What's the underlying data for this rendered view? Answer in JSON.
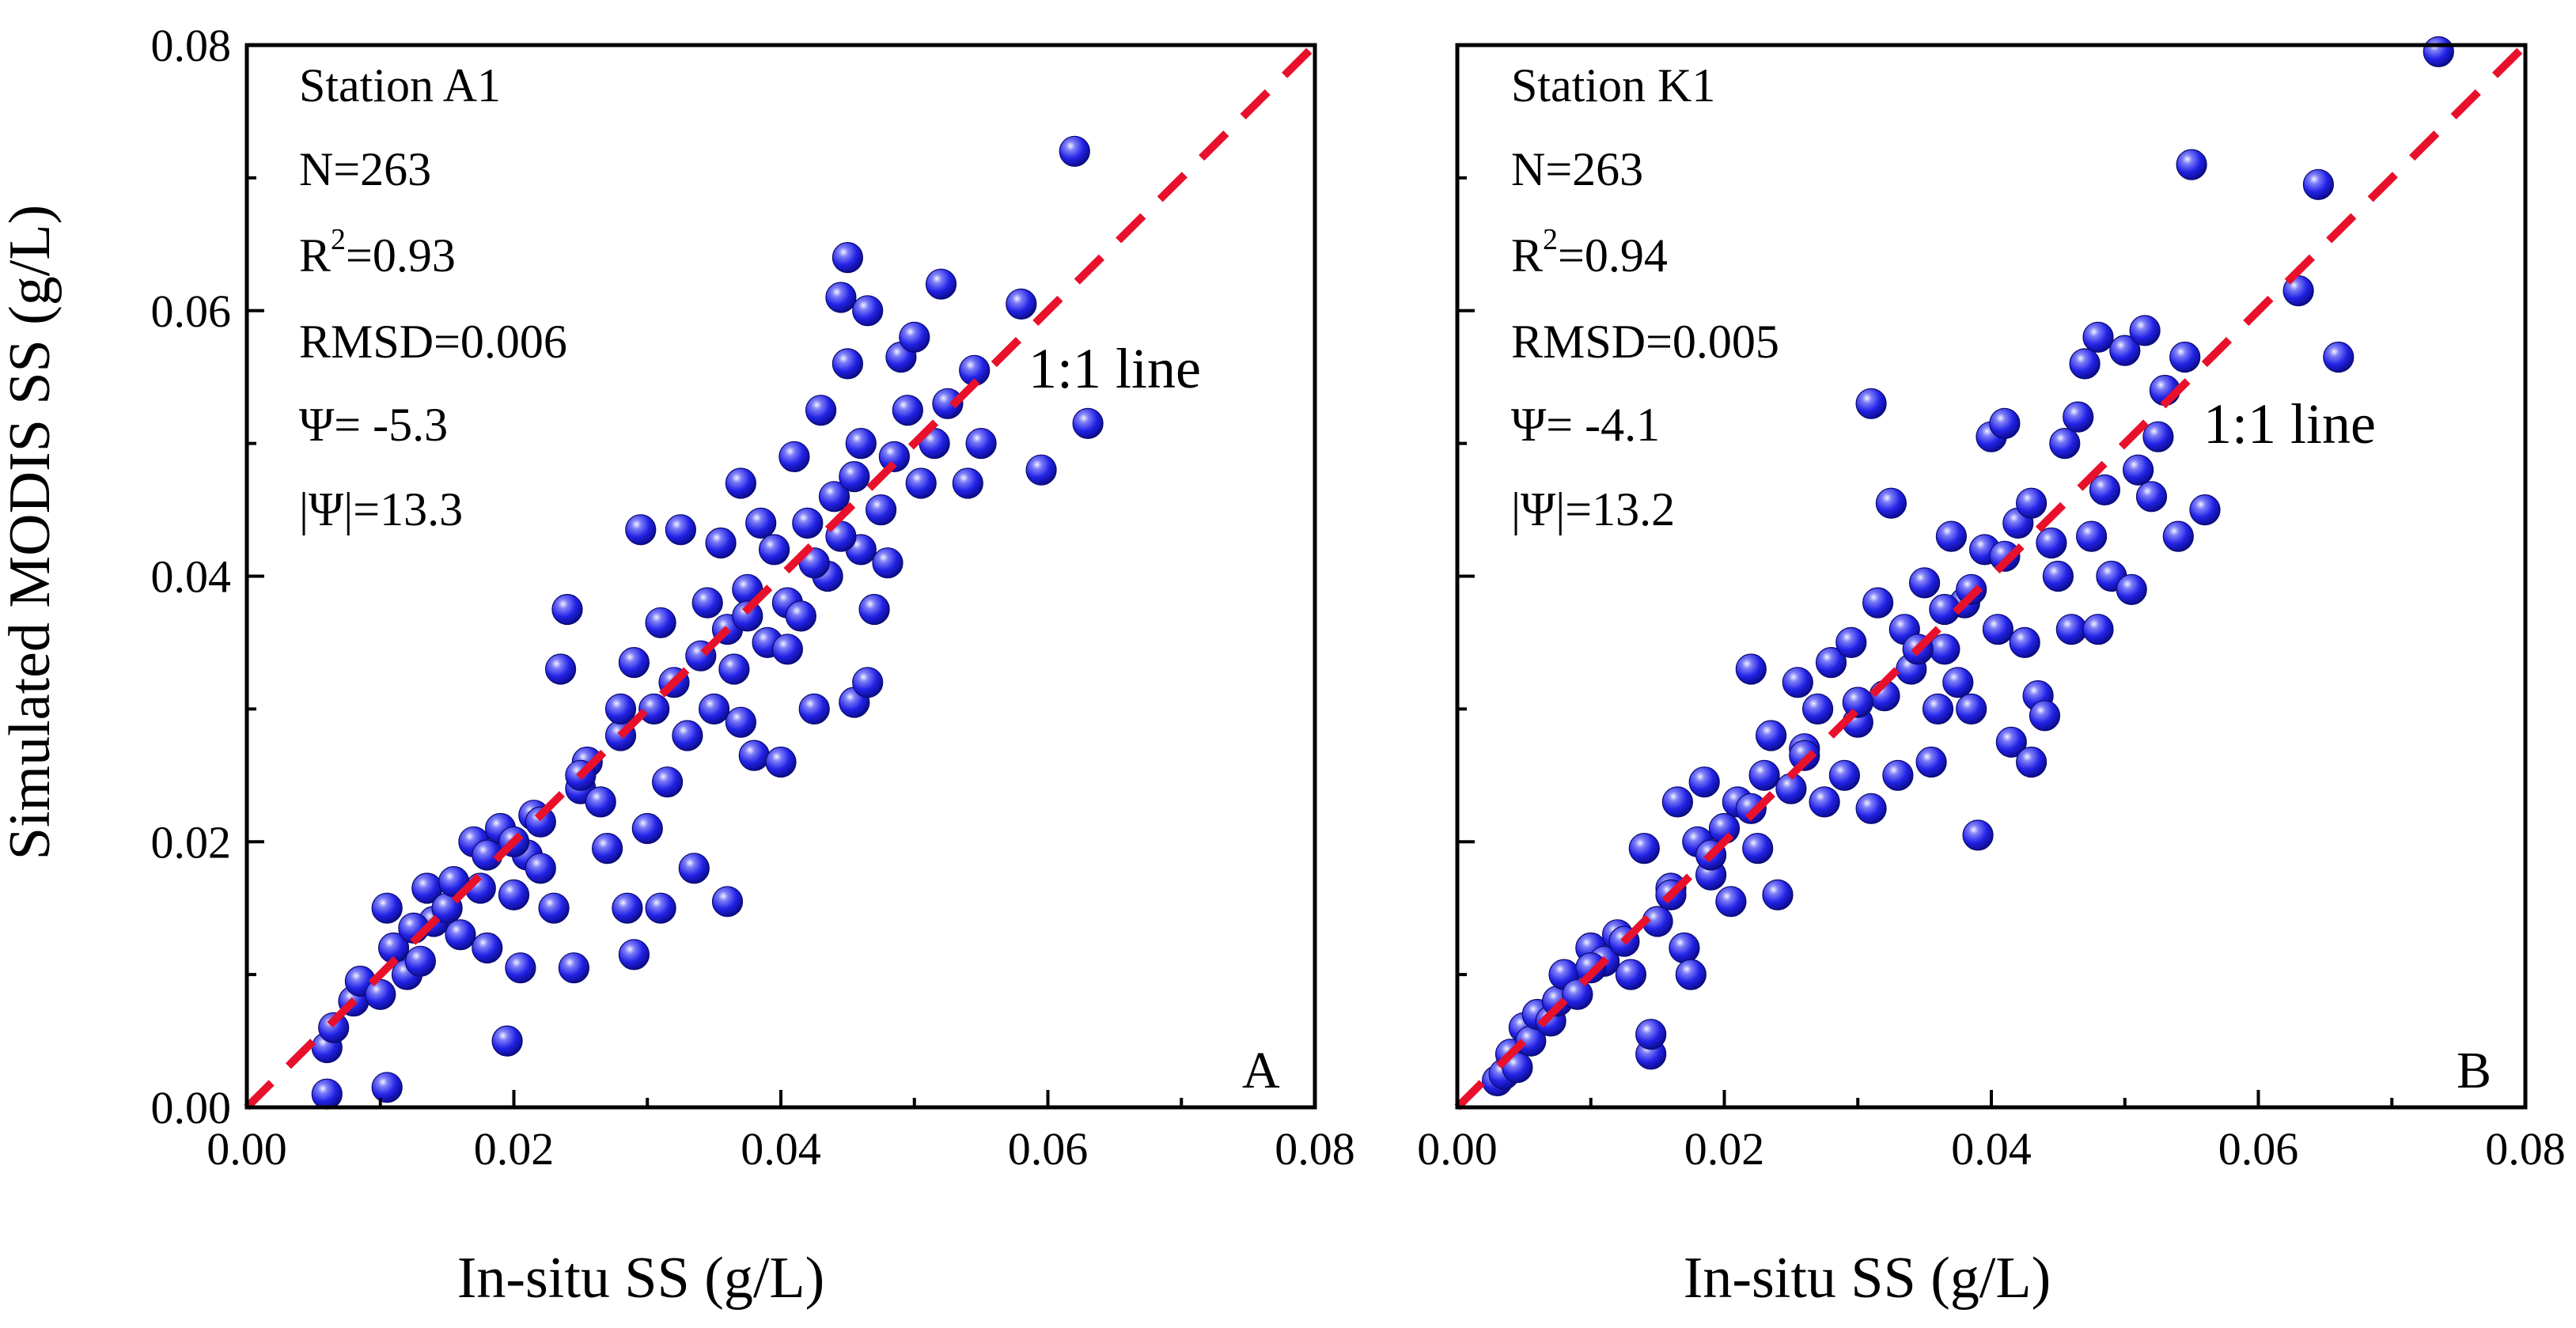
{
  "figure": {
    "y_axis_title": "Simulated MODIS SS (g/L)",
    "x_axis_title": "In-situ SS (g/L)",
    "ref_line_label": "1:1 line"
  },
  "colors": {
    "point": "#1f1fe0",
    "ref_line": "#e8102a",
    "axis": "#000000"
  },
  "chart_data": [
    {
      "type": "scatter",
      "panel": "A",
      "xlim": [
        0,
        0.08
      ],
      "ylim": [
        0,
        0.08
      ],
      "x_ticks": [
        "0.00",
        "0.02",
        "0.04",
        "0.06",
        "0.08"
      ],
      "y_ticks": [
        "0.00",
        "0.02",
        "0.04",
        "0.06",
        "0.08"
      ],
      "xlabel": "In-situ SS (g/L)",
      "ylabel": "Simulated MODIS SS (g/L)",
      "stats": [
        "Station A1",
        "N=263",
        "R",
        "=0.93",
        "RMSD=0.006",
        "Ψ= -5.3",
        "|Ψ|=13.3"
      ],
      "reference_line": "1:1 line",
      "points": [
        [
          0.006,
          0.001
        ],
        [
          0.0105,
          0.0015
        ],
        [
          0.006,
          0.0045
        ],
        [
          0.0065,
          0.006
        ],
        [
          0.008,
          0.008
        ],
        [
          0.0085,
          0.0095
        ],
        [
          0.01,
          0.0085
        ],
        [
          0.011,
          0.012
        ],
        [
          0.0105,
          0.015
        ],
        [
          0.012,
          0.01
        ],
        [
          0.013,
          0.011
        ],
        [
          0.0135,
          0.0165
        ],
        [
          0.014,
          0.014
        ],
        [
          0.015,
          0.015
        ],
        [
          0.016,
          0.013
        ],
        [
          0.017,
          0.02
        ],
        [
          0.018,
          0.012
        ],
        [
          0.018,
          0.019
        ],
        [
          0.019,
          0.021
        ],
        [
          0.0195,
          0.005
        ],
        [
          0.02,
          0.016
        ],
        [
          0.0205,
          0.0105
        ],
        [
          0.021,
          0.019
        ],
        [
          0.0215,
          0.022
        ],
        [
          0.022,
          0.018
        ],
        [
          0.023,
          0.015
        ],
        [
          0.0235,
          0.033
        ],
        [
          0.024,
          0.0375
        ],
        [
          0.0245,
          0.0105
        ],
        [
          0.025,
          0.024
        ],
        [
          0.0255,
          0.026
        ],
        [
          0.0265,
          0.023
        ],
        [
          0.027,
          0.0195
        ],
        [
          0.028,
          0.028
        ],
        [
          0.0285,
          0.015
        ],
        [
          0.029,
          0.0115
        ],
        [
          0.029,
          0.0335
        ],
        [
          0.0295,
          0.0435
        ],
        [
          0.03,
          0.021
        ],
        [
          0.0305,
          0.03
        ],
        [
          0.031,
          0.015
        ],
        [
          0.031,
          0.0365
        ],
        [
          0.0315,
          0.0245
        ],
        [
          0.032,
          0.032
        ],
        [
          0.0325,
          0.0435
        ],
        [
          0.033,
          0.028
        ],
        [
          0.0335,
          0.018
        ],
        [
          0.034,
          0.034
        ],
        [
          0.0345,
          0.038
        ],
        [
          0.035,
          0.03
        ],
        [
          0.0355,
          0.0425
        ],
        [
          0.036,
          0.0155
        ],
        [
          0.036,
          0.036
        ],
        [
          0.0365,
          0.033
        ],
        [
          0.037,
          0.047
        ],
        [
          0.037,
          0.029
        ],
        [
          0.0375,
          0.039
        ],
        [
          0.038,
          0.0265
        ],
        [
          0.0385,
          0.044
        ],
        [
          0.039,
          0.035
        ],
        [
          0.0395,
          0.042
        ],
        [
          0.04,
          0.026
        ],
        [
          0.0405,
          0.038
        ],
        [
          0.041,
          0.049
        ],
        [
          0.0415,
          0.037
        ],
        [
          0.042,
          0.044
        ],
        [
          0.0425,
          0.03
        ],
        [
          0.043,
          0.0525
        ],
        [
          0.0435,
          0.04
        ],
        [
          0.044,
          0.046
        ],
        [
          0.0445,
          0.061
        ],
        [
          0.045,
          0.064
        ],
        [
          0.045,
          0.056
        ],
        [
          0.0455,
          0.0305
        ],
        [
          0.046,
          0.042
        ],
        [
          0.046,
          0.05
        ],
        [
          0.0465,
          0.032
        ],
        [
          0.0465,
          0.06
        ],
        [
          0.047,
          0.0375
        ],
        [
          0.0475,
          0.045
        ],
        [
          0.048,
          0.041
        ],
        [
          0.0485,
          0.049
        ],
        [
          0.049,
          0.0565
        ],
        [
          0.0495,
          0.0525
        ],
        [
          0.05,
          0.058
        ],
        [
          0.0505,
          0.047
        ],
        [
          0.0515,
          0.05
        ],
        [
          0.052,
          0.062
        ],
        [
          0.0525,
          0.053
        ],
        [
          0.054,
          0.047
        ],
        [
          0.0545,
          0.0555
        ],
        [
          0.055,
          0.05
        ],
        [
          0.058,
          0.0605
        ],
        [
          0.0595,
          0.048
        ],
        [
          0.062,
          0.072
        ],
        [
          0.063,
          0.0515
        ],
        [
          0.0375,
          0.037
        ],
        [
          0.0405,
          0.0345
        ],
        [
          0.0425,
          0.041
        ],
        [
          0.0445,
          0.043
        ],
        [
          0.0455,
          0.0475
        ],
        [
          0.028,
          0.03
        ],
        [
          0.025,
          0.025
        ],
        [
          0.022,
          0.0215
        ],
        [
          0.02,
          0.02
        ],
        [
          0.0175,
          0.0165
        ],
        [
          0.0155,
          0.017
        ],
        [
          0.0125,
          0.0135
        ]
      ]
    },
    {
      "type": "scatter",
      "panel": "B",
      "xlim": [
        0,
        0.08
      ],
      "ylim": [
        0,
        0.08
      ],
      "x_ticks": [
        "0.00",
        "0.02",
        "0.04",
        "0.06",
        "0.08"
      ],
      "y_ticks": [],
      "xlabel": "In-situ SS (g/L)",
      "ylabel": "",
      "stats": [
        "Station K1",
        "N=263",
        "R",
        "=0.94",
        "RMSD=0.005",
        "Ψ= -4.1",
        "|Ψ|=13.2"
      ],
      "reference_line": "1:1 line",
      "points": [
        [
          0.003,
          0.002
        ],
        [
          0.0035,
          0.0025
        ],
        [
          0.004,
          0.004
        ],
        [
          0.0045,
          0.003
        ],
        [
          0.005,
          0.006
        ],
        [
          0.0055,
          0.005
        ],
        [
          0.006,
          0.007
        ],
        [
          0.007,
          0.0065
        ],
        [
          0.0075,
          0.008
        ],
        [
          0.008,
          0.01
        ],
        [
          0.009,
          0.0085
        ],
        [
          0.01,
          0.012
        ],
        [
          0.011,
          0.011
        ],
        [
          0.012,
          0.013
        ],
        [
          0.013,
          0.01
        ],
        [
          0.014,
          0.0195
        ],
        [
          0.0145,
          0.004
        ],
        [
          0.0145,
          0.0055
        ],
        [
          0.015,
          0.014
        ],
        [
          0.016,
          0.0165
        ],
        [
          0.0165,
          0.023
        ],
        [
          0.017,
          0.012
        ],
        [
          0.0175,
          0.01
        ],
        [
          0.018,
          0.02
        ],
        [
          0.0185,
          0.0245
        ],
        [
          0.019,
          0.0175
        ],
        [
          0.02,
          0.021
        ],
        [
          0.0205,
          0.0155
        ],
        [
          0.021,
          0.023
        ],
        [
          0.022,
          0.033
        ],
        [
          0.0225,
          0.0195
        ],
        [
          0.023,
          0.025
        ],
        [
          0.0235,
          0.028
        ],
        [
          0.024,
          0.016
        ],
        [
          0.025,
          0.024
        ],
        [
          0.0255,
          0.032
        ],
        [
          0.026,
          0.027
        ],
        [
          0.027,
          0.03
        ],
        [
          0.0275,
          0.023
        ],
        [
          0.028,
          0.0335
        ],
        [
          0.029,
          0.025
        ],
        [
          0.0295,
          0.035
        ],
        [
          0.03,
          0.029
        ],
        [
          0.031,
          0.053
        ],
        [
          0.031,
          0.0225
        ],
        [
          0.0315,
          0.038
        ],
        [
          0.032,
          0.031
        ],
        [
          0.0325,
          0.0455
        ],
        [
          0.033,
          0.025
        ],
        [
          0.0335,
          0.036
        ],
        [
          0.034,
          0.033
        ],
        [
          0.035,
          0.0395
        ],
        [
          0.0355,
          0.026
        ],
        [
          0.036,
          0.03
        ],
        [
          0.0365,
          0.0345
        ],
        [
          0.037,
          0.043
        ],
        [
          0.0375,
          0.032
        ],
        [
          0.038,
          0.038
        ],
        [
          0.0385,
          0.03
        ],
        [
          0.039,
          0.0205
        ],
        [
          0.0395,
          0.042
        ],
        [
          0.04,
          0.0505
        ],
        [
          0.0405,
          0.036
        ],
        [
          0.041,
          0.0515
        ],
        [
          0.0415,
          0.0275
        ],
        [
          0.042,
          0.044
        ],
        [
          0.0425,
          0.035
        ],
        [
          0.043,
          0.026
        ],
        [
          0.0435,
          0.031
        ],
        [
          0.044,
          0.0295
        ],
        [
          0.0445,
          0.0425
        ],
        [
          0.045,
          0.04
        ],
        [
          0.0455,
          0.05
        ],
        [
          0.046,
          0.036
        ],
        [
          0.0465,
          0.052
        ],
        [
          0.047,
          0.056
        ],
        [
          0.0475,
          0.043
        ],
        [
          0.048,
          0.058
        ],
        [
          0.048,
          0.036
        ],
        [
          0.0485,
          0.0465
        ],
        [
          0.049,
          0.04
        ],
        [
          0.05,
          0.057
        ],
        [
          0.0505,
          0.039
        ],
        [
          0.051,
          0.048
        ],
        [
          0.0515,
          0.0585
        ],
        [
          0.052,
          0.046
        ],
        [
          0.0525,
          0.0505
        ],
        [
          0.053,
          0.054
        ],
        [
          0.054,
          0.043
        ],
        [
          0.0545,
          0.0565
        ],
        [
          0.055,
          0.071
        ],
        [
          0.056,
          0.045
        ],
        [
          0.063,
          0.0615
        ],
        [
          0.0645,
          0.0695
        ],
        [
          0.066,
          0.0565
        ],
        [
          0.0735,
          0.0795
        ],
        [
          0.0365,
          0.0375
        ],
        [
          0.0385,
          0.039
        ],
        [
          0.041,
          0.0415
        ],
        [
          0.043,
          0.0455
        ],
        [
          0.0345,
          0.0345
        ],
        [
          0.03,
          0.0305
        ],
        [
          0.026,
          0.0265
        ],
        [
          0.022,
          0.0225
        ],
        [
          0.019,
          0.019
        ],
        [
          0.016,
          0.016
        ],
        [
          0.0125,
          0.0125
        ],
        [
          0.01,
          0.0105
        ]
      ]
    }
  ]
}
